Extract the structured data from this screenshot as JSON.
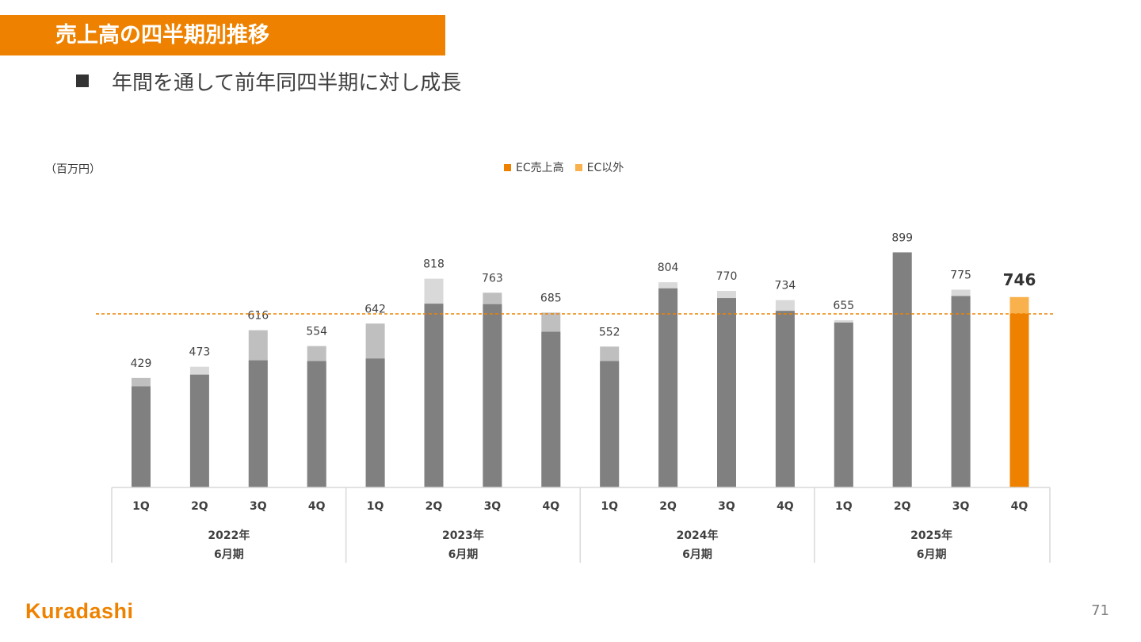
{
  "slide": {
    "title": "売上高の四半期別推移",
    "bullet": "年間を通して前年同四半期に対し成長",
    "page_number": "71",
    "logo_text": "Kuradashi"
  },
  "chart_data": {
    "type": "bar",
    "stacked": true,
    "unit_label": "（百万円）",
    "legend": [
      {
        "name": "EC売上高",
        "color": "#ee8200"
      },
      {
        "name": "EC以外",
        "color": "#f9b14d"
      }
    ],
    "categories": [
      "1Q",
      "2Q",
      "3Q",
      "4Q",
      "1Q",
      "2Q",
      "3Q",
      "4Q",
      "1Q",
      "2Q",
      "3Q",
      "4Q",
      "1Q",
      "2Q",
      "3Q",
      "4Q"
    ],
    "groups": [
      {
        "label_line1": "2022年",
        "label_line2": "6月期",
        "count": 4
      },
      {
        "label_line1": "2023年",
        "label_line2": "6月期",
        "count": 4
      },
      {
        "label_line1": "2024年",
        "label_line2": "6月期",
        "count": 4
      },
      {
        "label_line1": "2025年",
        "label_line2": "6月期",
        "count": 4
      }
    ],
    "series": [
      {
        "name": "EC売上高",
        "values": [
          396,
          442,
          498,
          495,
          505,
          720,
          718,
          610,
          495,
          780,
          742,
          692,
          646,
          921,
          750,
          681
        ]
      },
      {
        "name": "EC以外",
        "values": [
          33,
          31,
          118,
          59,
          137,
          98,
          45,
          75,
          57,
          24,
          28,
          42,
          9,
          -22,
          25,
          65
        ]
      }
    ],
    "totals": [
      429,
      473,
      616,
      554,
      642,
      818,
      763,
      685,
      552,
      804,
      770,
      734,
      655,
      899,
      775,
      746
    ],
    "highlight_index": 15,
    "reference_line": 680,
    "colors": {
      "ec_base": "#808080",
      "other_light": "#bfbfbf",
      "other_lighter": "#d9d9d9",
      "highlight_base": "#ee8200",
      "highlight_top": "#f9b14d",
      "reference_line": "#ee8200",
      "axis": "#d9d9d9"
    },
    "ylim": [
      0,
      1000
    ]
  }
}
